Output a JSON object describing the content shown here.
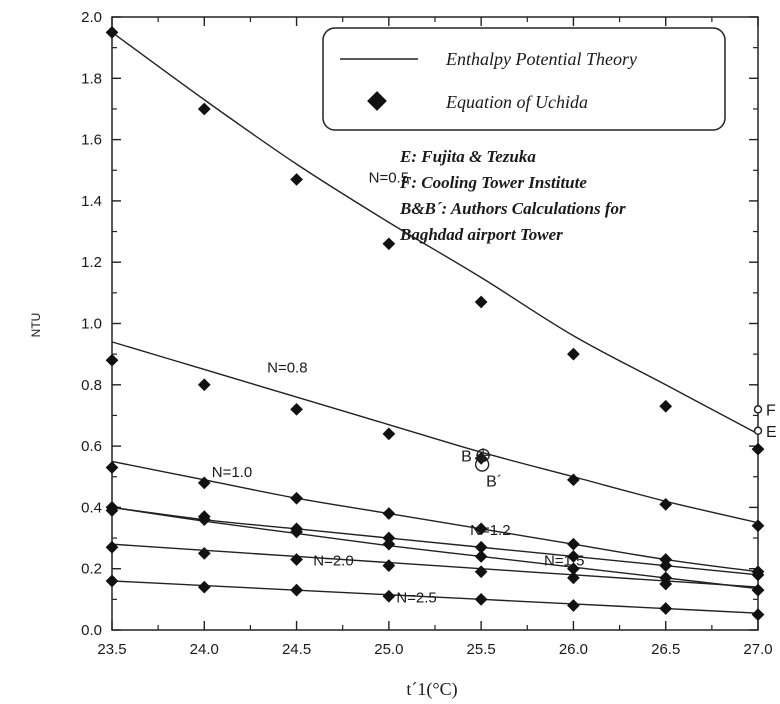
{
  "chart_data": {
    "type": "line",
    "xlabel": "t´1(°C)",
    "ylabel": "NTU",
    "xlim": [
      23.5,
      27.0
    ],
    "ylim": [
      0.0,
      2.0
    ],
    "x_ticks": [
      "23.5",
      "24.0",
      "24.5",
      "25.0",
      "25.5",
      "26.0",
      "26.5",
      "27.0"
    ],
    "y_ticks": [
      "0.0",
      "0.2",
      "0.4",
      "0.6",
      "0.8",
      "1.0",
      "1.2",
      "1.4",
      "1.6",
      "1.8",
      "2.0"
    ],
    "legend": {
      "line": "Enthalpy Potential Theory",
      "marker": "Equation of Uchida",
      "placement": "top-right"
    },
    "notes": [
      "E: Fujita & Tezuka",
      "F: Cooling Tower Institute",
      "B&B´: Authors Calculations for",
      "Baghdad airport Tower"
    ],
    "x": [
      23.5,
      24.0,
      24.5,
      25.0,
      25.5,
      26.0,
      26.5,
      27.0
    ],
    "series": [
      {
        "label": "N=0.5",
        "line": [
          1.95,
          1.73,
          1.52,
          1.33,
          1.15,
          0.96,
          0.8,
          0.64
        ],
        "points": [
          1.95,
          1.7,
          1.47,
          1.26,
          1.07,
          0.9,
          0.73,
          0.59
        ]
      },
      {
        "label": "N=0.8",
        "line": [
          0.94,
          0.85,
          0.76,
          0.67,
          0.58,
          0.5,
          0.42,
          0.35
        ],
        "points": [
          0.88,
          0.8,
          0.72,
          0.64,
          0.56,
          0.49,
          0.41,
          0.34
        ]
      },
      {
        "label": "N=1.0",
        "line": [
          0.55,
          0.49,
          0.43,
          0.38,
          0.33,
          0.28,
          0.23,
          0.19
        ],
        "points": [
          0.53,
          0.48,
          0.43,
          0.38,
          0.33,
          0.28,
          0.23,
          0.19
        ]
      },
      {
        "label": "N=1.2",
        "line": [
          0.4,
          0.36,
          0.33,
          0.3,
          0.27,
          0.24,
          0.21,
          0.18
        ],
        "points": [
          0.4,
          0.37,
          0.33,
          0.3,
          0.27,
          0.24,
          0.21,
          0.18
        ]
      },
      {
        "label": "N=1.5",
        "line": [
          0.4,
          0.355,
          0.315,
          0.275,
          0.24,
          0.205,
          0.17,
          0.135
        ],
        "points": [
          0.39,
          0.36,
          0.32,
          0.28,
          0.24,
          0.2,
          0.17,
          0.13
        ]
      },
      {
        "label": "N=2.0",
        "line": [
          0.28,
          0.26,
          0.24,
          0.22,
          0.2,
          0.18,
          0.16,
          0.14
        ],
        "points": [
          0.27,
          0.25,
          0.23,
          0.21,
          0.19,
          0.17,
          0.15,
          0.13
        ]
      },
      {
        "label": "N=2.5",
        "line": [
          0.16,
          0.145,
          0.13,
          0.115,
          0.1,
          0.085,
          0.07,
          0.055
        ],
        "points": [
          0.16,
          0.14,
          0.13,
          0.11,
          0.1,
          0.08,
          0.07,
          0.05
        ]
      }
    ],
    "reference_points": [
      {
        "label": "F",
        "x": 27.0,
        "y": 0.72
      },
      {
        "label": "E",
        "x": 27.0,
        "y": 0.65
      },
      {
        "label": "B",
        "x": 25.5,
        "y": 0.57
      },
      {
        "label": "B´",
        "x": 25.5,
        "y": 0.54
      }
    ]
  }
}
